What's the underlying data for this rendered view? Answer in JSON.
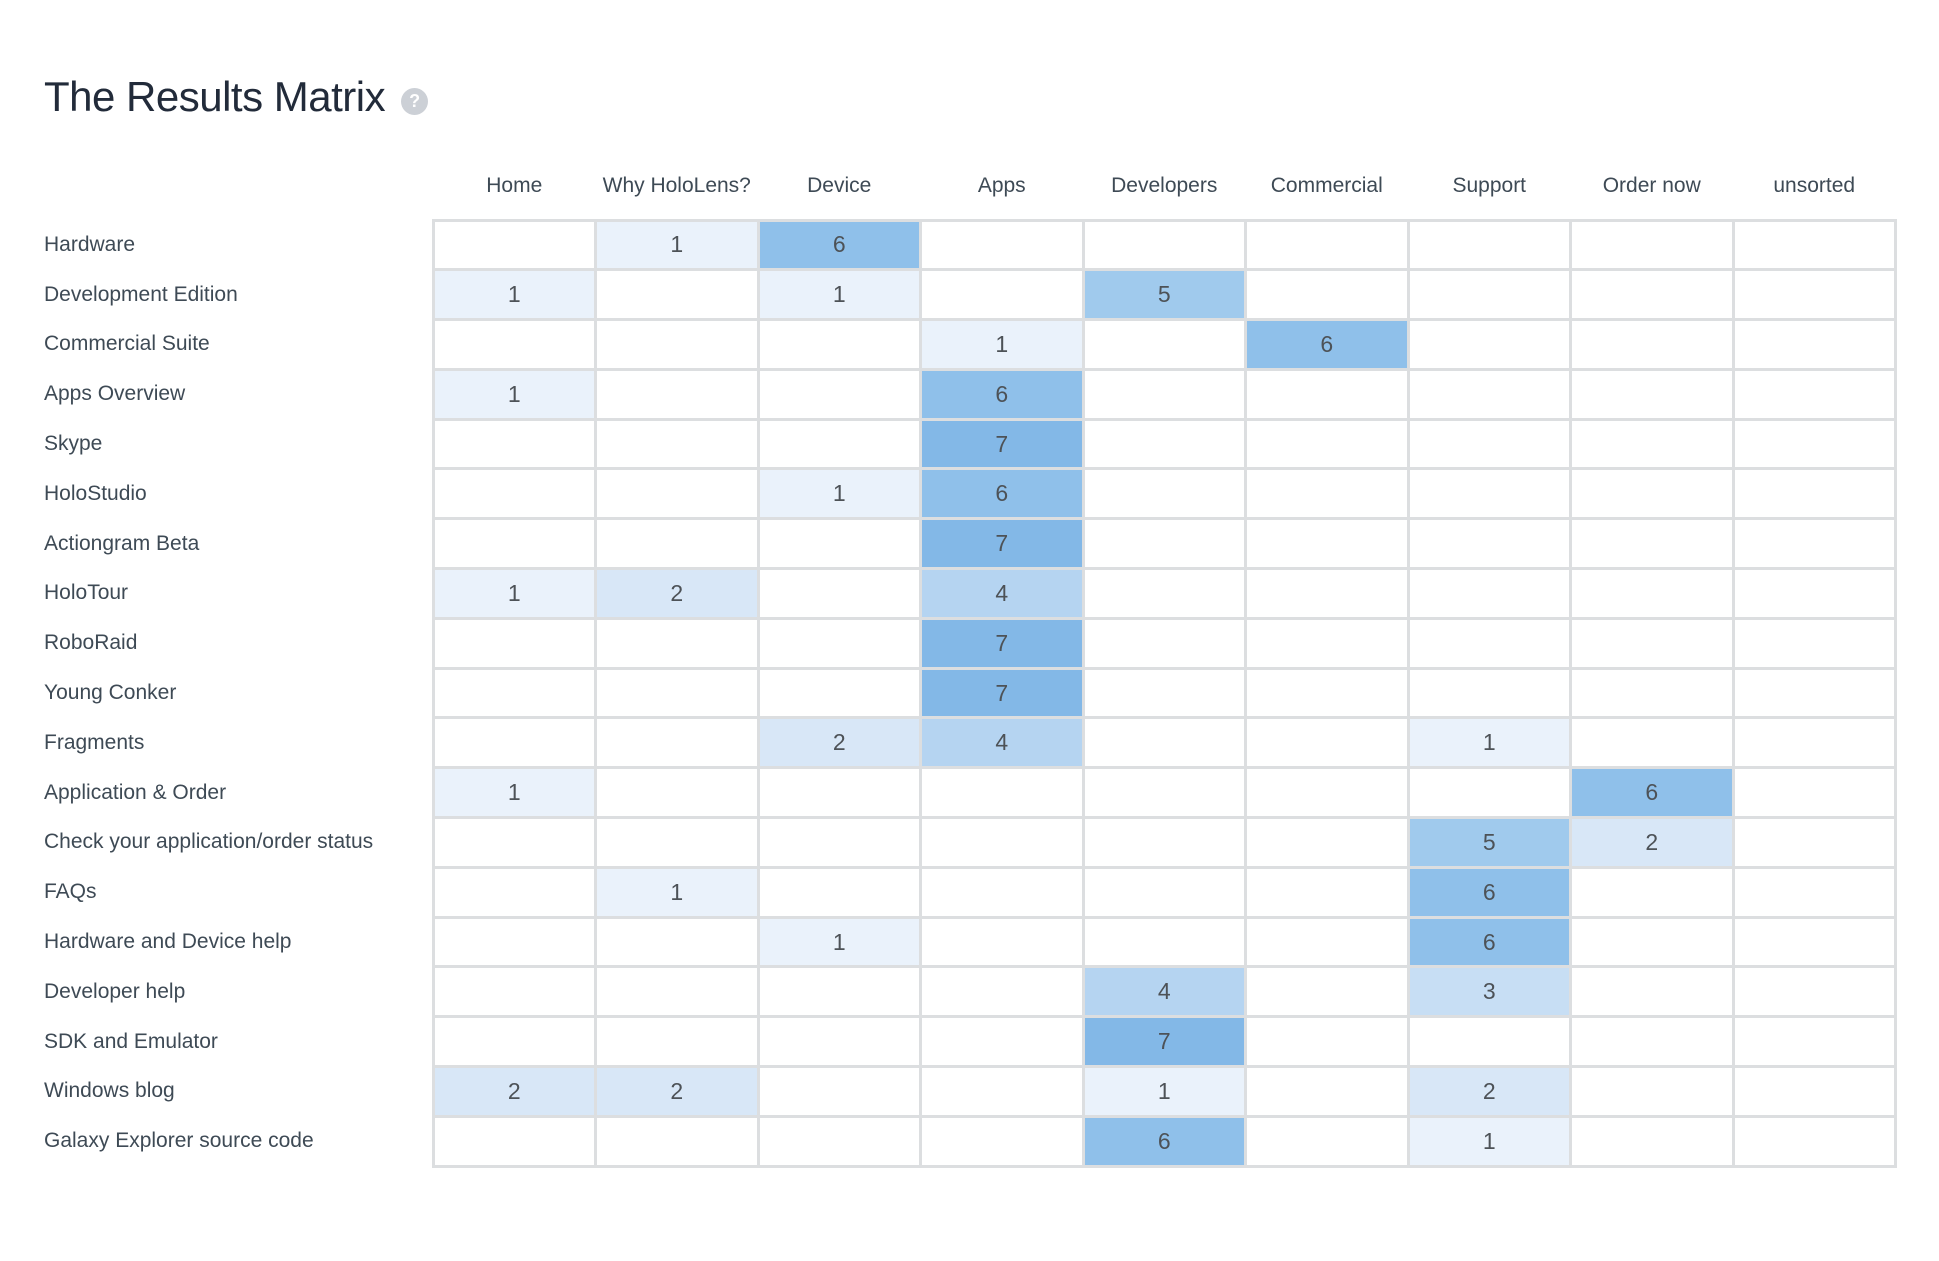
{
  "page": {
    "title": "The Results Matrix",
    "help_icon_glyph": "?"
  },
  "chart_data": {
    "type": "heatmap",
    "title": "The Results Matrix",
    "columns": [
      "Home",
      "Why HoloLens?",
      "Device",
      "Apps",
      "Developers",
      "Commercial",
      "Support",
      "Order now",
      "unsorted"
    ],
    "rows": [
      "Hardware",
      "Development Edition",
      "Commercial Suite",
      "Apps Overview",
      "Skype",
      "HoloStudio",
      "Actiongram Beta",
      "HoloTour",
      "RoboRaid",
      "Young Conker",
      "Fragments",
      "Application & Order",
      "Check your application/order status",
      "FAQs",
      "Hardware and Device help",
      "Developer help",
      "SDK and Emulator",
      "Windows blog",
      "Galaxy Explorer source code"
    ],
    "values": [
      [
        null,
        1,
        6,
        null,
        null,
        null,
        null,
        null,
        null
      ],
      [
        1,
        null,
        1,
        null,
        5,
        null,
        null,
        null,
        null
      ],
      [
        null,
        null,
        null,
        1,
        null,
        6,
        null,
        null,
        null
      ],
      [
        1,
        null,
        null,
        6,
        null,
        null,
        null,
        null,
        null
      ],
      [
        null,
        null,
        null,
        7,
        null,
        null,
        null,
        null,
        null
      ],
      [
        null,
        null,
        1,
        6,
        null,
        null,
        null,
        null,
        null
      ],
      [
        null,
        null,
        null,
        7,
        null,
        null,
        null,
        null,
        null
      ],
      [
        1,
        2,
        null,
        4,
        null,
        null,
        null,
        null,
        null
      ],
      [
        null,
        null,
        null,
        7,
        null,
        null,
        null,
        null,
        null
      ],
      [
        null,
        null,
        null,
        7,
        null,
        null,
        null,
        null,
        null
      ],
      [
        null,
        null,
        2,
        4,
        null,
        null,
        1,
        null,
        null
      ],
      [
        1,
        null,
        null,
        null,
        null,
        null,
        null,
        6,
        null
      ],
      [
        null,
        null,
        null,
        null,
        null,
        null,
        5,
        2,
        null
      ],
      [
        null,
        1,
        null,
        null,
        null,
        null,
        6,
        null,
        null
      ],
      [
        null,
        null,
        1,
        null,
        null,
        null,
        6,
        null,
        null
      ],
      [
        null,
        null,
        null,
        null,
        4,
        null,
        3,
        null,
        null
      ],
      [
        null,
        null,
        null,
        null,
        7,
        null,
        null,
        null,
        null
      ],
      [
        2,
        2,
        null,
        null,
        1,
        null,
        2,
        null,
        null
      ],
      [
        null,
        null,
        null,
        null,
        6,
        null,
        1,
        null,
        null
      ]
    ],
    "max_value": 7,
    "value_colors": {
      "1": "#eaf2fb",
      "2": "#d8e7f7",
      "3": "#c7def4",
      "4": "#b5d4f1",
      "5": "#a0caed",
      "6": "#8fc0ea",
      "7": "#83b8e7"
    },
    "colors": {
      "title_text": "#222b3a",
      "label_text": "#3e4a55",
      "cell_text": "#4d5257",
      "grid_line": "#dcdee0",
      "help_icon_bg": "#ccd0d6",
      "cell_base_blue": "#83b8e7",
      "background": "#ffffff"
    },
    "layout_hints": {
      "empty_cells_blank": true,
      "shading": "cell fill intensity proportional to value (max 7)",
      "row_label_column_unbordered": true
    }
  }
}
